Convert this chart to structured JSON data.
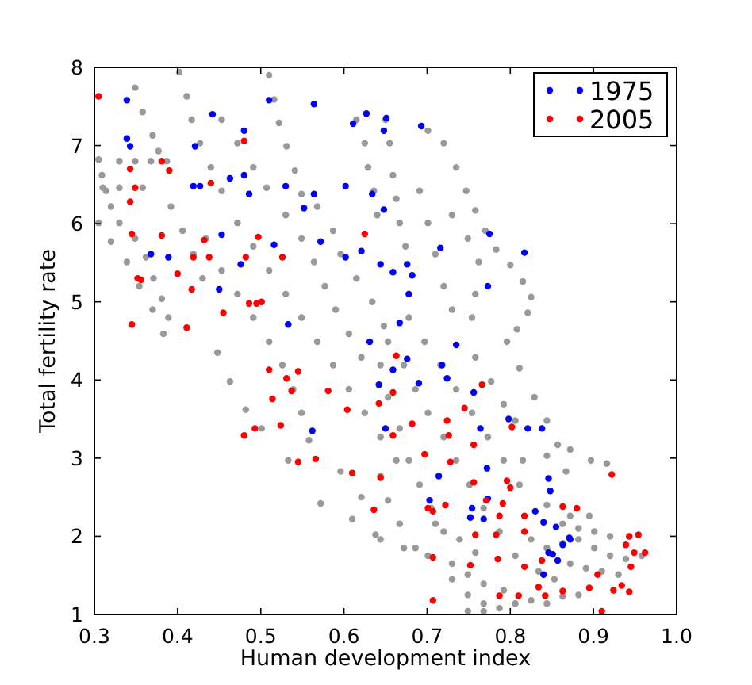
{
  "chart_data": {
    "type": "scatter",
    "xlabel": "Human development index",
    "ylabel": "Total fertility rate",
    "xlim": [
      0.3,
      1.0
    ],
    "ylim": [
      1,
      8
    ],
    "xticks": [
      0.3,
      0.4,
      0.5,
      0.6,
      0.7,
      0.8,
      0.9,
      {
        "value": 1.0,
        "label": "1.0"
      }
    ],
    "yticks": [
      1,
      2,
      3,
      4,
      5,
      6,
      7,
      8
    ],
    "legend": "top right",
    "marker": "circle",
    "series": [
      {
        "color": "#999999",
        "x": [
          0.305,
          0.309,
          0.314,
          0.32,
          0.33,
          0.349,
          0.362,
          0.371,
          0.381,
          0.389,
          0.305,
          0.32,
          0.339,
          0.354,
          0.37,
          0.383,
          0.33,
          0.349,
          0.368,
          0.387,
          0.31,
          0.33,
          0.358,
          0.349,
          0.358,
          0.37,
          0.377,
          0.402,
          0.411,
          0.417,
          0.427,
          0.44,
          0.453,
          0.453,
          0.472,
          0.491,
          0.507,
          0.51,
          0.516,
          0.522,
          0.531,
          0.541,
          0.549,
          0.392,
          0.406,
          0.419,
          0.43,
          0.472,
          0.491,
          0.51,
          0.53,
          0.549,
          0.568,
          0.587,
          0.606,
          0.625,
          0.644,
          0.663,
          0.434,
          0.453,
          0.472,
          0.491,
          0.51,
          0.526,
          0.539,
          0.549,
          0.448,
          0.463,
          0.482,
          0.501,
          0.533,
          0.572,
          0.61,
          0.638,
          0.558,
          0.596,
          0.621,
          0.568,
          0.587,
          0.596,
          0.615,
          0.634,
          0.648,
          0.615,
          0.625,
          0.629,
          0.636,
          0.64,
          0.53,
          0.549,
          0.564,
          0.577,
          0.59,
          0.606,
          0.621,
          0.65,
          0.655,
          0.659,
          0.663,
          0.667,
          0.674,
          0.701,
          0.72,
          0.735,
          0.747,
          0.758,
          0.77,
          0.783,
          0.8,
          0.815,
          0.825,
          0.821,
          0.808,
          0.73,
          0.749,
          0.762,
          0.758,
          0.754,
          0.691,
          0.701,
          0.71,
          0.72,
          0.73,
          0.653,
          0.672,
          0.686,
          0.701,
          0.72,
          0.735,
          0.751,
          0.768,
          0.787,
          0.806,
          0.678,
          0.697,
          0.716,
          0.735,
          0.754,
          0.773,
          0.792,
          0.811,
          0.644,
          0.653,
          0.667,
          0.678,
          0.691,
          0.705,
          0.72,
          0.644,
          0.653,
          0.667,
          0.686,
          0.758,
          0.777,
          0.792,
          0.806,
          0.796,
          0.811,
          0.829,
          0.844,
          0.857,
          0.867,
          0.815,
          0.844,
          0.872,
          0.897,
          0.916,
          0.825,
          0.844,
          0.863,
          0.882,
          0.901,
          0.92,
          0.939,
          0.958,
          0.834,
          0.853,
          0.872,
          0.891,
          0.91,
          0.93,
          0.863,
          0.882,
          0.901,
          0.92,
          0.749,
          0.768,
          0.787,
          0.806,
          0.825,
          0.844,
          0.863,
          0.882,
          0.644,
          0.672,
          0.701,
          0.73,
          0.749,
          0.768,
          0.792,
          0.73,
          0.749,
          0.768,
          0.844,
          0.872,
          0.895,
          0.71,
          0.739,
          0.758
        ],
        "values": [
          6.82,
          6.62,
          6.42,
          6.22,
          6.01,
          5.81,
          5.57,
          5.3,
          5.04,
          4.8,
          6.01,
          5.77,
          5.51,
          5.2,
          4.9,
          4.59,
          6.8,
          6.8,
          6.8,
          6.8,
          6.46,
          6.46,
          6.46,
          7.74,
          7.43,
          7.13,
          6.93,
          7.94,
          7.63,
          7.33,
          7.03,
          6.72,
          6.42,
          7.33,
          7.03,
          6.72,
          6.46,
          7.9,
          7.59,
          7.29,
          6.99,
          6.68,
          6.38,
          6.22,
          5.91,
          5.61,
          5.3,
          6.01,
          5.71,
          5.4,
          5.1,
          4.8,
          4.49,
          4.19,
          3.88,
          3.58,
          3.27,
          2.97,
          5.81,
          5.4,
          5.1,
          4.8,
          4.49,
          4.19,
          3.88,
          3.58,
          4.35,
          3.98,
          3.62,
          3.38,
          2.97,
          2.42,
          2.22,
          2.02,
          3.23,
          2.83,
          2.5,
          6.22,
          5.91,
          5.61,
          5.3,
          5.0,
          4.69,
          7.33,
          7.03,
          6.72,
          6.42,
          6.11,
          6.11,
          5.81,
          5.51,
          5.2,
          4.9,
          4.59,
          4.29,
          7.33,
          7.03,
          6.62,
          6.32,
          6.01,
          5.71,
          7.19,
          7.03,
          6.72,
          6.42,
          6.17,
          5.91,
          5.67,
          5.47,
          5.26,
          5.06,
          4.86,
          4.65,
          6.11,
          5.81,
          5.51,
          5.1,
          4.8,
          6.42,
          6.01,
          5.61,
          5.2,
          4.9,
          4.49,
          4.19,
          3.88,
          3.58,
          3.27,
          2.97,
          2.66,
          2.36,
          2.06,
          1.75,
          4.8,
          4.49,
          4.19,
          3.88,
          3.58,
          3.27,
          2.97,
          2.66,
          4.19,
          3.78,
          3.38,
          2.97,
          2.66,
          2.36,
          2.06,
          2.77,
          2.46,
          2.16,
          1.85,
          4.29,
          3.98,
          3.69,
          3.48,
          4.49,
          4.15,
          3.78,
          3.48,
          3.17,
          2.83,
          2.97,
          3.03,
          3.11,
          2.97,
          2.93,
          1.96,
          1.85,
          1.91,
          1.96,
          1.85,
          1.75,
          1.71,
          1.75,
          1.55,
          1.45,
          1.65,
          1.59,
          1.55,
          1.51,
          2.16,
          2.1,
          2.06,
          2.0,
          1.04,
          1.04,
          1.08,
          1.14,
          1.18,
          1.14,
          1.23,
          1.25,
          1.96,
          1.85,
          1.75,
          1.65,
          1.51,
          1.39,
          1.31,
          1.45,
          1.25,
          1.14,
          2.4,
          2.26,
          2.26,
          2.16,
          1.96,
          1.79
        ]
      },
      {
        "name": "1975",
        "color": "#0000ff",
        "x": [
          0.339,
          0.51,
          0.442,
          0.48,
          0.339,
          0.421,
          0.343,
          0.48,
          0.463,
          0.419,
          0.427,
          0.486,
          0.53,
          0.564,
          0.552,
          0.572,
          0.634,
          0.602,
          0.621,
          0.602,
          0.453,
          0.516,
          0.368,
          0.389,
          0.476,
          0.45,
          0.533,
          0.564,
          0.627,
          0.611,
          0.648,
          0.644,
          0.651,
          0.693,
          0.648,
          0.775,
          0.716,
          0.817,
          0.676,
          0.659,
          0.682,
          0.678,
          0.773,
          0.667,
          0.631,
          0.642,
          0.562,
          0.65,
          0.735,
          0.676,
          0.659,
          0.69,
          0.724,
          0.718,
          0.756,
          0.764,
          0.798,
          0.821,
          0.838,
          0.772,
          0.714,
          0.846,
          0.848,
          0.773,
          0.754,
          0.703,
          0.752,
          0.768,
          0.83,
          0.84,
          0.855,
          0.871,
          0.846,
          0.851,
          0.857,
          0.84,
          0.863,
          0.872
        ],
        "values": [
          7.58,
          7.58,
          7.4,
          7.19,
          7.09,
          6.99,
          6.99,
          6.62,
          6.58,
          6.48,
          6.48,
          6.38,
          6.48,
          6.38,
          6.2,
          5.77,
          6.38,
          6.48,
          5.65,
          5.57,
          5.86,
          5.73,
          5.61,
          5.57,
          5.48,
          5.16,
          4.71,
          7.53,
          7.41,
          7.28,
          7.19,
          5.48,
          7.35,
          7.25,
          6.18,
          5.87,
          5.69,
          5.63,
          5.48,
          5.38,
          5.34,
          5.1,
          5.2,
          4.73,
          4.49,
          3.94,
          3.35,
          3.38,
          4.45,
          4.27,
          4.13,
          3.96,
          4.02,
          4.19,
          3.84,
          3.38,
          3.5,
          3.38,
          3.38,
          2.87,
          2.77,
          2.74,
          2.58,
          2.48,
          2.36,
          2.46,
          2.24,
          2.22,
          2.32,
          2.18,
          2.12,
          1.98,
          1.79,
          1.77,
          1.69,
          1.51,
          1.89,
          1.96
        ]
      },
      {
        "name": "2005",
        "color": "#ff0000",
        "x": [
          0.305,
          0.48,
          0.381,
          0.39,
          0.343,
          0.44,
          0.349,
          0.343,
          0.345,
          0.381,
          0.432,
          0.497,
          0.625,
          0.419,
          0.438,
          0.526,
          0.482,
          0.352,
          0.356,
          0.4,
          0.417,
          0.486,
          0.495,
          0.501,
          0.455,
          0.345,
          0.411,
          0.51,
          0.531,
          0.545,
          0.537,
          0.514,
          0.581,
          0.604,
          0.642,
          0.48,
          0.493,
          0.524,
          0.545,
          0.566,
          0.61,
          0.644,
          0.636,
          0.663,
          0.659,
          0.682,
          0.724,
          0.745,
          0.766,
          0.802,
          0.726,
          0.756,
          0.697,
          0.728,
          0.756,
          0.796,
          0.8,
          0.771,
          0.722,
          0.701,
          0.707,
          0.791,
          0.787,
          0.817,
          0.863,
          0.88,
          0.922,
          0.758,
          0.783,
          0.817,
          0.707,
          0.785,
          0.752,
          0.817,
          0.838,
          0.707,
          0.787,
          0.81,
          0.842,
          0.863,
          0.895,
          0.91,
          0.943,
          0.954,
          0.939,
          0.949,
          0.962,
          0.945,
          0.934,
          0.943,
          0.924,
          0.905,
          0.659,
          0.834
        ],
        "values": [
          7.63,
          7.06,
          6.8,
          6.68,
          6.7,
          6.52,
          6.46,
          6.28,
          5.87,
          5.85,
          5.79,
          5.83,
          5.87,
          5.57,
          5.57,
          5.57,
          5.57,
          5.3,
          5.28,
          5.36,
          5.16,
          4.98,
          4.98,
          5.0,
          4.86,
          4.71,
          4.67,
          4.13,
          4.02,
          4.11,
          3.86,
          3.76,
          3.86,
          3.62,
          3.7,
          3.29,
          3.38,
          3.42,
          2.95,
          2.99,
          2.81,
          2.75,
          2.34,
          4.31,
          3.84,
          3.44,
          3.48,
          3.64,
          3.94,
          3.4,
          3.29,
          3.17,
          3.05,
          2.95,
          2.69,
          2.71,
          2.62,
          2.46,
          2.4,
          2.36,
          2.32,
          2.42,
          2.26,
          2.26,
          2.38,
          2.36,
          2.79,
          2.02,
          2.02,
          2.06,
          1.73,
          1.71,
          1.63,
          1.61,
          1.69,
          1.18,
          1.24,
          1.24,
          1.24,
          1.3,
          1.34,
          1.04,
          2.0,
          2.02,
          1.89,
          1.79,
          1.79,
          1.61,
          1.37,
          1.29,
          1.31,
          1.51,
          3.29,
          1.35
        ]
      }
    ]
  }
}
